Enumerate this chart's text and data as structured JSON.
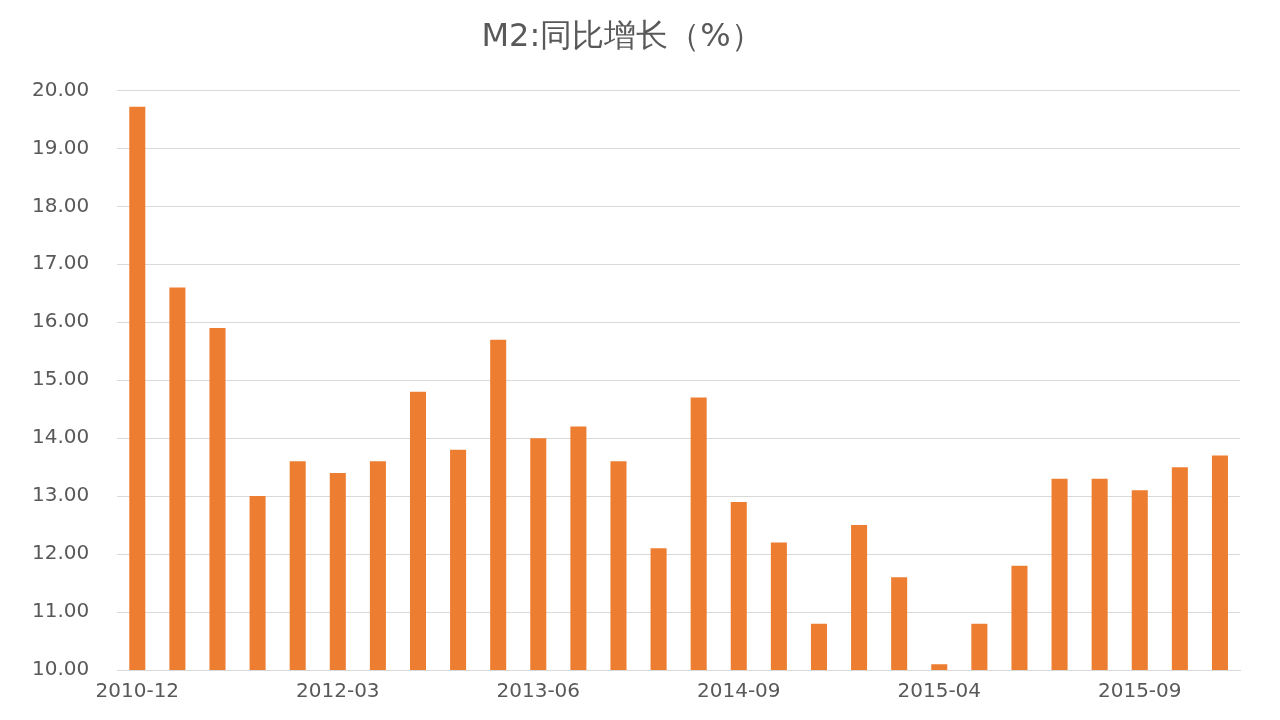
{
  "chart_data": {
    "type": "bar",
    "title": "M2:同比增长（%）",
    "categories": [
      "2010-12",
      null,
      null,
      null,
      null,
      "2012-03",
      null,
      null,
      null,
      null,
      "2013-06",
      null,
      null,
      null,
      null,
      "2014-09",
      null,
      null,
      null,
      null,
      "2015-04",
      null,
      null,
      null,
      null,
      "2015-09",
      null,
      null
    ],
    "values": [
      19.72,
      16.6,
      15.9,
      13.0,
      13.6,
      13.4,
      13.6,
      14.8,
      13.8,
      15.7,
      14.0,
      14.2,
      13.6,
      12.1,
      14.7,
      12.9,
      12.2,
      10.8,
      12.5,
      11.6,
      10.1,
      10.8,
      11.8,
      13.3,
      13.3,
      13.1,
      13.5,
      13.7
    ],
    "color": "#ed7d31",
    "ylim": [
      10,
      20
    ],
    "yticks": [
      {
        "value": 10,
        "label": "10.00"
      },
      {
        "value": 11,
        "label": "11.00"
      },
      {
        "value": 12,
        "label": "12.00"
      },
      {
        "value": 13,
        "label": "13.00"
      },
      {
        "value": 14,
        "label": "14.00"
      },
      {
        "value": 15,
        "label": "15.00"
      },
      {
        "value": 16,
        "label": "16.00"
      },
      {
        "value": 17,
        "label": "17.00"
      },
      {
        "value": 18,
        "label": "18.00"
      },
      {
        "value": 19,
        "label": "19.00"
      },
      {
        "value": 20,
        "label": "20.00"
      }
    ],
    "grid": "y",
    "legend": false
  }
}
